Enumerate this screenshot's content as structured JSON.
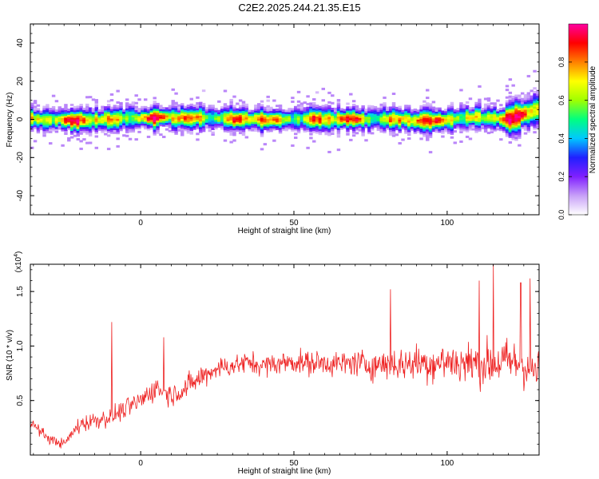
{
  "title": "C2E2.2025.244.21.35.E15",
  "chart_data": [
    {
      "type": "heatmap",
      "xlabel": "Height of straight line (km)",
      "ylabel": "Frequency (Hz)",
      "xlim": [
        -36,
        130
      ],
      "ylim": [
        -50,
        50
      ],
      "xticks": [
        0,
        50,
        100
      ],
      "xtick_labels": [
        "0",
        "50",
        "100"
      ],
      "yticks": [
        -40,
        -20,
        0,
        20,
        40
      ],
      "ytick_labels": [
        "-40",
        "-20",
        "0",
        "20",
        "40"
      ],
      "colorbar": {
        "label": "Normalized spectral amplitude",
        "range": [
          0,
          1
        ],
        "ticks": [
          0,
          0.2,
          0.4,
          0.6,
          0.8
        ],
        "tick_labels": [
          "0.0",
          "0.2",
          "0.4",
          "0.6",
          "0.8"
        ],
        "colormap": [
          "#ffffff",
          "#c8a0f8",
          "#8020ff",
          "#2020ff",
          "#00c8ff",
          "#00ff80",
          "#a0ff00",
          "#ffff00",
          "#ff8000",
          "#ff0000",
          "#ff00a0"
        ]
      },
      "ridge_center_hz": [
        {
          "x": -36,
          "y": 0
        },
        {
          "x": -20,
          "y": -1
        },
        {
          "x": 0,
          "y": 0.5
        },
        {
          "x": 20,
          "y": 0.5
        },
        {
          "x": 40,
          "y": -0.5
        },
        {
          "x": 60,
          "y": 0
        },
        {
          "x": 80,
          "y": 0
        },
        {
          "x": 95,
          "y": -1
        },
        {
          "x": 110,
          "y": 1
        },
        {
          "x": 120,
          "y": -0.5
        },
        {
          "x": 130,
          "y": 5
        }
      ],
      "ridge_halfwidth_hz": 4.5
    },
    {
      "type": "line",
      "xlabel": "Height of straight line (km)",
      "ylabel": "SNR (10 * v/v)",
      "y_multiplier": "(x10",
      "y_multiplier_exp": "4",
      "y_multiplier_close": ")",
      "xlim": [
        -36,
        130
      ],
      "ylim": [
        0,
        1.75
      ],
      "xticks": [
        0,
        50,
        100
      ],
      "xtick_labels": [
        "0",
        "50",
        "100"
      ],
      "yticks": [
        0.5,
        1.0,
        1.5
      ],
      "ytick_labels": [
        "0.5",
        "1.0",
        "1.5"
      ],
      "color": "#ee2222",
      "series": [
        {
          "x": [
            -36,
            -30,
            -25,
            -20,
            -15,
            -10,
            -5,
            0,
            5,
            10,
            15,
            20,
            25,
            30,
            35,
            40,
            45,
            50,
            55,
            60,
            65,
            70,
            75,
            80,
            85,
            90,
            95,
            100,
            105,
            110,
            115,
            120,
            125,
            130
          ],
          "values": [
            0.3,
            0.15,
            0.1,
            0.28,
            0.32,
            0.35,
            0.42,
            0.5,
            0.62,
            0.55,
            0.62,
            0.72,
            0.8,
            0.82,
            0.85,
            0.82,
            0.84,
            0.86,
            0.84,
            0.85,
            0.83,
            0.85,
            0.82,
            0.84,
            0.83,
            0.85,
            0.84,
            0.86,
            0.84,
            0.85,
            0.84,
            0.86,
            0.82,
            0.75
          ],
          "spread": [
            0.1,
            0.08,
            0.08,
            0.15,
            0.15,
            0.15,
            0.16,
            0.18,
            0.2,
            0.18,
            0.2,
            0.2,
            0.18,
            0.18,
            0.18,
            0.18,
            0.18,
            0.2,
            0.2,
            0.2,
            0.22,
            0.22,
            0.24,
            0.26,
            0.28,
            0.3,
            0.32,
            0.34,
            0.36,
            0.38,
            0.38,
            0.38,
            0.38,
            0.36
          ]
        }
      ],
      "spikes": [
        {
          "x": -9.5,
          "y": 1.22
        },
        {
          "x": 7.5,
          "y": 1.08
        },
        {
          "x": 81.5,
          "y": 1.52
        },
        {
          "x": 110.5,
          "y": 1.6
        },
        {
          "x": 115,
          "y": 1.75
        },
        {
          "x": 124,
          "y": 1.58
        },
        {
          "x": 127,
          "y": 1.62
        }
      ]
    }
  ]
}
